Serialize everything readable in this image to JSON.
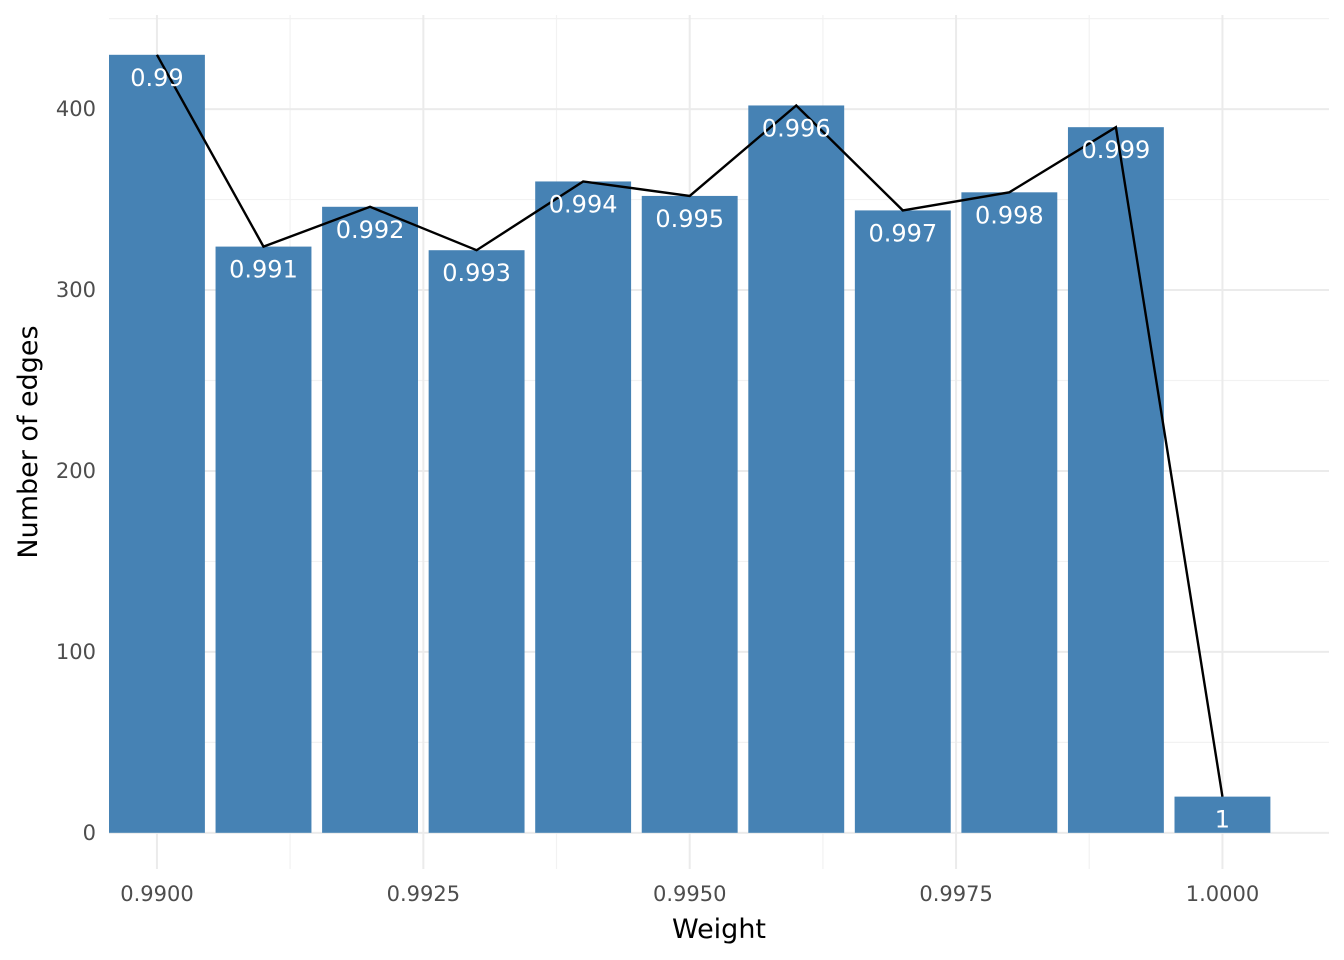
{
  "chart_data": {
    "type": "bar",
    "xlabel": "Weight",
    "ylabel": "Number of edges",
    "xlim": [
      0.98955,
      1.001
    ],
    "ylim": [
      -20,
      452
    ],
    "x_ticks": [
      0.99,
      0.9925,
      0.995,
      0.9975,
      1.0
    ],
    "x_tick_labels": [
      "0.9900",
      "0.9925",
      "0.9950",
      "0.9975",
      "1.0000"
    ],
    "y_ticks": [
      0,
      100,
      200,
      300,
      400
    ],
    "y_tick_labels": [
      "0",
      "100",
      "200",
      "300",
      "400"
    ],
    "grid": true,
    "bar_color": "#4682b4",
    "line_color": "#000000",
    "bar_width": 0.0009,
    "x": [
      0.99,
      0.991,
      0.992,
      0.993,
      0.994,
      0.995,
      0.996,
      0.997,
      0.998,
      0.999,
      1.0
    ],
    "values": [
      430,
      324,
      346,
      322,
      360,
      352,
      402,
      344,
      354,
      390,
      20
    ],
    "bar_labels": [
      "0.99",
      "0.991",
      "0.992",
      "0.993",
      "0.994",
      "0.995",
      "0.996",
      "0.997",
      "0.998",
      "0.999",
      "1"
    ],
    "line_overlay": true
  }
}
